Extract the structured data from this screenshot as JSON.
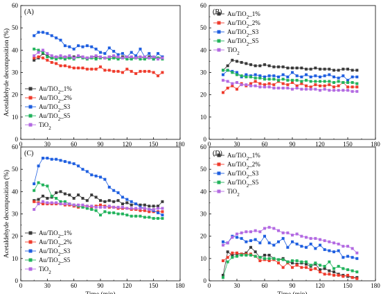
{
  "figure": {
    "colors": {
      "Au/TiO2_1%": "#3a3a3a",
      "Au/TiO2_2%": "#ef3b2c",
      "Au/TiO2_S3": "#1f5fe0",
      "Au/TiO2_S5": "#22b35c",
      "TiO2": "#b36ae2"
    },
    "markers": {
      "Au/TiO2_1%": "square",
      "Au/TiO2_2%": "square",
      "Au/TiO2_S3": "square",
      "Au/TiO2_S5": "square",
      "TiO2": "square"
    }
  },
  "chart_data": [
    {
      "panel": "(A)",
      "type": "line",
      "title": "",
      "xlabel": "",
      "ylabel": "Acetaldehyde decomposition (%)",
      "xlim": [
        0,
        180
      ],
      "ylim": [
        0,
        60
      ],
      "xticks": [
        "0",
        "30",
        "60",
        "90",
        "120",
        "150",
        "180"
      ],
      "yticks": [
        "0",
        "10",
        "20",
        "30",
        "40",
        "50",
        "60"
      ],
      "legend": "bottom-left",
      "x": [
        15,
        20,
        25,
        30,
        35,
        40,
        45,
        50,
        55,
        60,
        65,
        70,
        75,
        80,
        85,
        90,
        95,
        100,
        105,
        110,
        115,
        120,
        125,
        130,
        135,
        140,
        145,
        150,
        155,
        160
      ],
      "series": [
        {
          "name": "Au/TiO2_1%",
          "values": [
            35.5,
            36.5,
            38.5,
            37.5,
            36.5,
            37,
            36.5,
            37,
            36.5,
            37,
            37,
            37,
            36.5,
            37,
            37,
            37,
            36.5,
            37,
            37,
            36.5,
            37,
            37,
            36.5,
            37,
            37,
            36.5,
            37,
            37,
            36.5,
            37
          ]
        },
        {
          "name": "Au/TiO2_2%",
          "values": [
            36.5,
            37,
            36.5,
            35.5,
            34.5,
            34,
            33,
            33,
            32.5,
            32,
            32,
            32,
            31.5,
            31.5,
            31.5,
            32.5,
            31,
            31,
            30.5,
            30.5,
            30,
            31.5,
            30.5,
            29.5,
            30.5,
            30.5,
            30.5,
            30,
            28.5,
            30
          ]
        },
        {
          "name": "Au/TiO2_S3",
          "values": [
            46.5,
            48,
            48,
            47.5,
            46.5,
            45.5,
            44.5,
            42,
            41.5,
            40.5,
            42,
            41.5,
            42,
            41.5,
            40.5,
            39,
            38.5,
            41,
            39.5,
            38,
            38.5,
            37,
            39,
            37.5,
            40.5,
            37,
            38.5,
            36,
            38.5,
            37
          ]
        },
        {
          "name": "Au/TiO2_S5",
          "values": [
            40.5,
            40,
            39,
            37,
            36.5,
            36,
            36.5,
            36,
            36.5,
            36,
            37,
            36.5,
            36,
            36.5,
            36,
            36.5,
            36.5,
            36,
            36.5,
            36,
            36.5,
            36,
            36,
            36.5,
            36,
            36,
            36.5,
            36,
            36.5,
            36
          ]
        },
        {
          "name": "TiO2",
          "values": [
            37.5,
            39,
            40,
            38.5,
            37.5,
            37,
            37.5,
            37,
            37.5,
            36.5,
            37.5,
            37,
            36.5,
            37,
            37.5,
            37,
            36.5,
            37,
            37.5,
            37,
            36.5,
            37,
            37,
            36.5,
            37,
            37,
            36.5,
            37,
            36,
            36.5
          ]
        }
      ]
    },
    {
      "panel": "(B)",
      "type": "line",
      "title": "",
      "xlabel": "",
      "ylabel": "",
      "xlim": [
        0,
        180
      ],
      "ylim": [
        0,
        60
      ],
      "xticks": [
        "0",
        "30",
        "60",
        "90",
        "120",
        "150",
        "180"
      ],
      "yticks": [
        "0",
        "10",
        "20",
        "30",
        "40",
        "50",
        "60"
      ],
      "legend": "top-left",
      "x": [
        15,
        20,
        25,
        30,
        35,
        40,
        45,
        50,
        55,
        60,
        65,
        70,
        75,
        80,
        85,
        90,
        95,
        100,
        105,
        110,
        115,
        120,
        125,
        130,
        135,
        140,
        145,
        150,
        155,
        160
      ],
      "series": [
        {
          "name": "Au/TiO2_1%",
          "values": [
            31,
            33,
            35.5,
            35,
            34.5,
            34,
            33.5,
            33,
            33,
            33.5,
            33,
            32.5,
            32.5,
            32.5,
            32,
            32,
            32,
            32,
            31.5,
            31.5,
            32,
            31.5,
            31.5,
            31.5,
            31,
            31,
            31.5,
            31.5,
            31,
            31
          ]
        },
        {
          "name": "Au/TiO2_2%",
          "values": [
            21,
            23,
            24,
            22.5,
            25,
            24,
            25,
            26,
            25,
            24.5,
            25,
            24.5,
            26,
            25,
            24.5,
            25.5,
            24,
            25,
            24,
            23.5,
            24.5,
            24,
            24,
            24.5,
            23.5,
            24,
            25.5,
            23.5,
            23.5,
            23.5
          ]
        },
        {
          "name": "Au/TiO2_S3",
          "values": [
            29,
            31,
            30.5,
            30,
            28,
            29,
            28.5,
            29,
            28.5,
            28,
            28.5,
            28.5,
            28,
            29,
            28,
            30,
            28.5,
            28,
            29,
            28,
            28.5,
            28,
            28.5,
            29,
            28,
            27.5,
            28.5,
            26.5,
            28,
            28
          ]
        },
        {
          "name": "Au/TiO2_S5",
          "values": [
            31,
            31,
            30,
            29,
            28.5,
            28,
            28,
            27.5,
            27.5,
            27,
            27,
            27,
            26.5,
            27,
            26.5,
            26.5,
            26.5,
            26,
            26.5,
            26,
            26,
            26,
            26,
            26,
            25.5,
            26,
            25.5,
            25.5,
            25.5,
            25
          ]
        },
        {
          "name": "TiO2",
          "values": [
            26.5,
            26,
            25,
            25.5,
            24.5,
            24.5,
            24,
            24,
            23.5,
            23.5,
            23.5,
            23,
            23,
            23,
            23,
            22.5,
            23,
            22.5,
            22.5,
            22.5,
            22.5,
            22,
            22.5,
            22,
            22,
            22,
            22,
            22,
            21.5,
            21.5
          ]
        }
      ]
    },
    {
      "panel": "(C)",
      "type": "line",
      "title": "",
      "xlabel": "Time (min)",
      "ylabel": "Acetaldehyde decomposition (%)",
      "xlim": [
        0,
        180
      ],
      "ylim": [
        0,
        60
      ],
      "xticks": [
        "0",
        "30",
        "60",
        "90",
        "120",
        "150",
        "180"
      ],
      "yticks": [
        "0",
        "10",
        "20",
        "30",
        "40",
        "50",
        "60"
      ],
      "legend": "bottom-left",
      "x": [
        15,
        20,
        25,
        30,
        35,
        40,
        45,
        50,
        55,
        60,
        65,
        70,
        75,
        80,
        85,
        90,
        95,
        100,
        105,
        110,
        115,
        120,
        125,
        130,
        135,
        140,
        145,
        150,
        155,
        160
      ],
      "series": [
        {
          "name": "Au/TiO2_1%",
          "values": [
            36,
            36.5,
            38,
            37,
            37.5,
            39.5,
            40,
            39,
            38.5,
            37,
            38.5,
            37,
            36,
            38.5,
            37.5,
            36,
            35.5,
            36,
            35.5,
            36,
            34.5,
            35,
            34,
            34.5,
            34,
            34,
            33.5,
            33.5,
            33.5,
            35.5
          ]
        },
        {
          "name": "Au/TiO2_2%",
          "values": [
            35.5,
            35,
            34.5,
            34.5,
            34.5,
            34.5,
            34.5,
            34,
            34,
            33.5,
            33,
            33.5,
            33.5,
            33,
            33.5,
            34,
            33.5,
            33,
            33,
            32.5,
            32.5,
            32.5,
            32,
            32,
            31.5,
            31.5,
            31,
            31,
            31,
            31
          ]
        },
        {
          "name": "Au/TiO2_S3",
          "values": [
            43.5,
            51.5,
            55,
            55,
            54.5,
            54.5,
            54,
            53.5,
            53,
            52.5,
            51.5,
            50,
            49,
            47.5,
            47,
            46.5,
            45.5,
            42,
            40.5,
            39.5,
            37.5,
            36.5,
            35.5,
            34.5,
            33,
            32.5,
            32,
            31.5,
            30.5,
            29.5
          ]
        },
        {
          "name": "Au/TiO2_S5",
          "values": [
            40.5,
            44,
            43,
            42.5,
            38,
            37,
            35.5,
            35.5,
            34.5,
            34,
            33.5,
            33,
            32.5,
            32,
            31.5,
            29.5,
            31,
            30.5,
            30.5,
            30,
            30,
            29.5,
            29,
            29,
            29,
            28.5,
            28.5,
            28,
            28,
            28
          ]
        },
        {
          "name": "TiO2",
          "values": [
            32,
            34.5,
            35.5,
            35,
            35,
            35,
            34.5,
            34.5,
            34.5,
            34,
            34,
            34,
            33.5,
            33.5,
            33,
            33,
            33,
            33.5,
            33,
            33,
            33,
            32.5,
            32.5,
            32.5,
            32.5,
            32.5,
            32,
            32,
            32.5,
            32.5
          ]
        }
      ]
    },
    {
      "panel": "(D)",
      "type": "line",
      "title": "",
      "xlabel": "Time (min)",
      "ylabel": "",
      "xlim": [
        0,
        180
      ],
      "ylim": [
        0,
        60
      ],
      "xticks": [
        "0",
        "30",
        "60",
        "90",
        "120",
        "150",
        "180"
      ],
      "yticks": [
        "0",
        "10",
        "20",
        "30",
        "40",
        "50",
        "60"
      ],
      "legend": "top-left",
      "x": [
        15,
        20,
        25,
        30,
        35,
        40,
        45,
        50,
        55,
        60,
        65,
        70,
        75,
        80,
        85,
        90,
        95,
        100,
        105,
        110,
        115,
        120,
        125,
        130,
        135,
        140,
        145,
        150,
        155,
        160
      ],
      "series": [
        {
          "name": "Au/TiO2_1%",
          "values": [
            2.5,
            13,
            11.5,
            12,
            12,
            12.5,
            15,
            13,
            10.5,
            11.5,
            11.5,
            10,
            9.5,
            10,
            8.5,
            8,
            7.5,
            8,
            7.5,
            6.5,
            7.5,
            5,
            5.5,
            4.5,
            4,
            3,
            2.5,
            2,
            1.5,
            1.5
          ]
        },
        {
          "name": "Au/TiO2_2%",
          "values": [
            9,
            10.5,
            12.5,
            12.5,
            12,
            12,
            12,
            11,
            9,
            9.5,
            9,
            9.5,
            8,
            6,
            8,
            6,
            7,
            6,
            6,
            5,
            5.5,
            4,
            3,
            3,
            2.5,
            2.5,
            2,
            2.5,
            1.5,
            1
          ]
        },
        {
          "name": "Au/TiO2_S3",
          "values": [
            17.5,
            17,
            20,
            19.5,
            19,
            17.5,
            18,
            18.5,
            17,
            20,
            17,
            16,
            17.5,
            19,
            15,
            17.5,
            16.5,
            15.5,
            15,
            16.5,
            14.5,
            16,
            14,
            13.5,
            13,
            13.5,
            10.5,
            11,
            10.5,
            10
          ]
        },
        {
          "name": "Au/TiO2_S5",
          "values": [
            1.5,
            8.5,
            10.5,
            11,
            11.5,
            11.5,
            11.5,
            11,
            10.5,
            10,
            10,
            10,
            9.5,
            9.5,
            8.5,
            9,
            9,
            8.5,
            8.5,
            7,
            8,
            7,
            6.5,
            8.5,
            5.5,
            6.5,
            5.5,
            5,
            4.5,
            4
          ]
        },
        {
          "name": "TiO2",
          "values": [
            16,
            17,
            19.5,
            21,
            21.5,
            22,
            22,
            22.5,
            22,
            23.5,
            24,
            23.5,
            22.5,
            21.5,
            21.5,
            20.5,
            21,
            20,
            19.5,
            19,
            19,
            18.5,
            18,
            17.5,
            17,
            16.5,
            15.5,
            15.5,
            14.5,
            12.5
          ]
        }
      ]
    }
  ]
}
